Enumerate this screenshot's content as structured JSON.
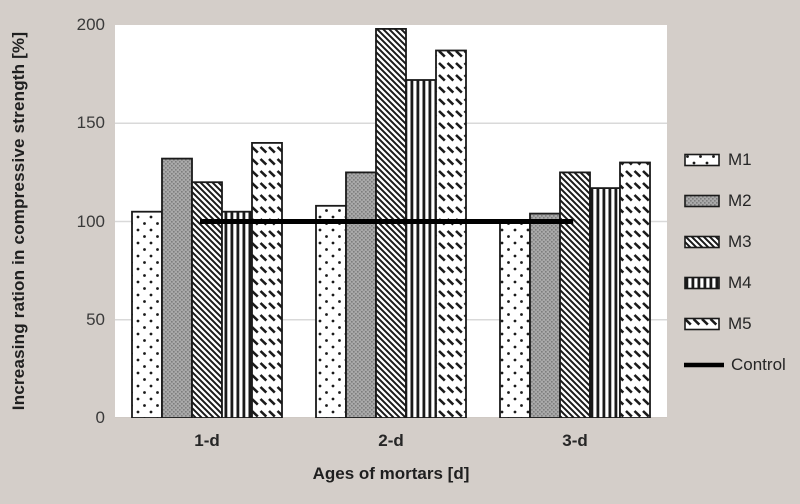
{
  "chart_data": {
    "type": "bar",
    "title": "",
    "categories": [
      "1-d",
      "2-d",
      "3-d"
    ],
    "series": [
      {
        "name": "M1",
        "pattern": "dots",
        "values": [
          105,
          108,
          100
        ]
      },
      {
        "name": "M2",
        "pattern": "gray-texture",
        "values": [
          132,
          125,
          104
        ]
      },
      {
        "name": "M3",
        "pattern": "diagonal-stripes",
        "values": [
          120,
          198,
          125
        ]
      },
      {
        "name": "M4",
        "pattern": "vertical-stripes",
        "values": [
          105,
          172,
          117
        ]
      },
      {
        "name": "M5",
        "pattern": "dash-rows",
        "values": [
          140,
          187,
          130
        ]
      }
    ],
    "control": {
      "label": "Control",
      "value": 100,
      "span_frac": [
        0.154,
        0.83
      ]
    },
    "xlabel": "Ages of mortars [d]",
    "ylabel": "Increasing ration in compressive strength [%]",
    "ylim": [
      0,
      200
    ],
    "yticks": [
      0,
      50,
      100,
      150,
      200
    ],
    "grid": true,
    "legend_position": "right"
  },
  "colors": {
    "background": "#d4cec9",
    "plot_background": "#ffffff",
    "gridline": "#d9d9d9",
    "bar_stroke": "#1a1a1a",
    "control_line": "#000000",
    "tick_text": "#3a3a3a"
  }
}
